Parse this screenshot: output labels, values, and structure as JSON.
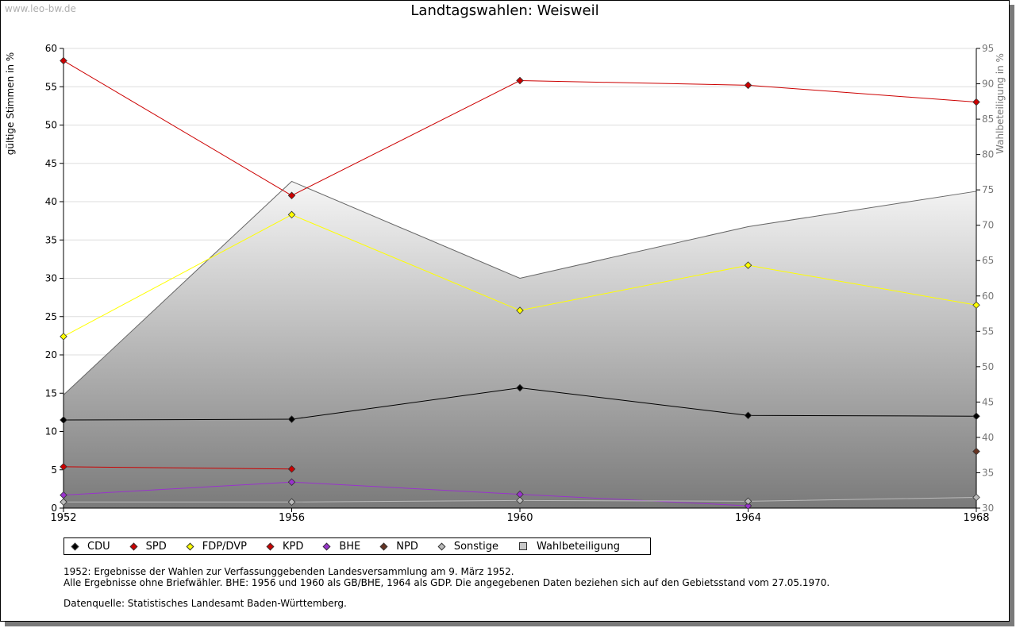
{
  "watermark": "www.leo-bw.de",
  "chart_data": {
    "type": "line",
    "title": "Landtagswahlen: Weisweil",
    "ylabel": "gültige Stimmen in %",
    "y2label": "Wahlbeteiligung in %",
    "x": [
      1952,
      1956,
      1960,
      1964,
      1968
    ],
    "ylim": [
      0,
      60
    ],
    "y2lim": [
      30,
      95
    ],
    "yticks": [
      0,
      5,
      10,
      15,
      20,
      25,
      30,
      35,
      40,
      45,
      50,
      55,
      60
    ],
    "y2ticks": [
      30,
      35,
      40,
      45,
      50,
      55,
      60,
      65,
      70,
      75,
      80,
      85,
      90,
      95
    ],
    "series": [
      {
        "name": "CDU",
        "color": "#000000",
        "values": [
          11.5,
          11.6,
          15.7,
          12.1,
          12.0
        ]
      },
      {
        "name": "SPD",
        "color": "#cc0000",
        "values": [
          58.4,
          40.8,
          55.8,
          55.2,
          53.0
        ]
      },
      {
        "name": "FDP/DVP",
        "color": "#ffff00",
        "values": [
          22.4,
          38.3,
          25.8,
          31.7,
          26.5
        ]
      },
      {
        "name": "KPD",
        "color": "#cc0000",
        "values": [
          5.4,
          5.1,
          null,
          null,
          null
        ]
      },
      {
        "name": "BHE",
        "color": "#9933cc",
        "values": [
          1.7,
          3.4,
          1.8,
          0.3,
          null
        ]
      },
      {
        "name": "NPD",
        "color": "#663322",
        "values": [
          null,
          null,
          null,
          null,
          7.4
        ]
      },
      {
        "name": "Sonstige",
        "color": "#bbbbbb",
        "values": [
          0.8,
          0.8,
          1.0,
          0.9,
          1.4
        ]
      }
    ],
    "turnout": {
      "name": "Wahlbeteiligung",
      "axis": "right",
      "values": [
        46.0,
        76.2,
        62.5,
        69.8,
        74.8
      ]
    },
    "legend": [
      "CDU",
      "SPD",
      "FDP/DVP",
      "KPD",
      "BHE",
      "NPD",
      "Sonstige",
      "Wahlbeteiligung"
    ]
  },
  "notes": {
    "line1": "1952: Ergebnisse der Wahlen zur Verfassunggebenden Landesversammlung am 9. März 1952.",
    "line2": "Alle Ergebnisse ohne Briefwähler. BHE: 1956 und 1960 als GB/BHE, 1964 als GDP. Die angegebenen Daten beziehen sich auf den Gebietsstand vom 27.05.1970.",
    "source": "Datenquelle: Statistisches Landesamt Baden-Württemberg."
  }
}
